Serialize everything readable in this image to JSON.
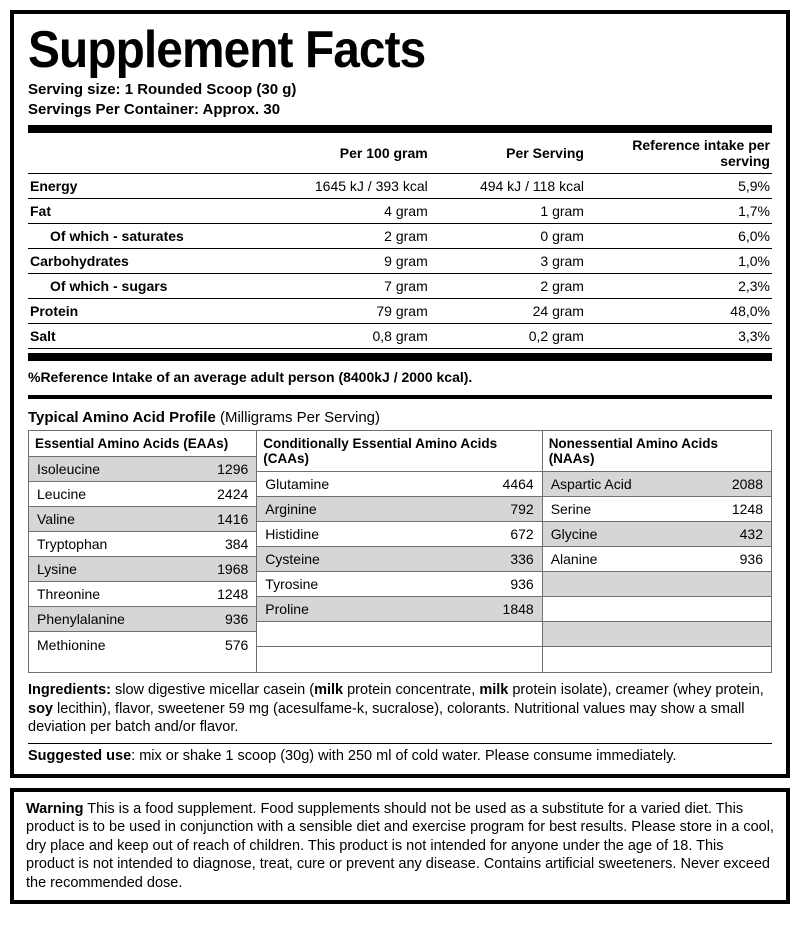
{
  "title": "Supplement Facts",
  "serving_size_label": "Serving size:",
  "serving_size_value": "1 Rounded Scoop (30 g)",
  "servings_per_container_label": "Servings Per Container:",
  "servings_per_container_value": "Approx. 30",
  "nutri": {
    "headers": [
      "",
      "Per 100 gram",
      "Per Serving",
      "Reference intake per serving"
    ],
    "rows": [
      {
        "name": "Energy",
        "sub": false,
        "per100": "1645 kJ / 393 kcal",
        "perServ": "494 kJ / 118 kcal",
        "ri": "5,9%"
      },
      {
        "name": "Fat",
        "sub": false,
        "per100": "4 gram",
        "perServ": "1 gram",
        "ri": "1,7%"
      },
      {
        "name": "Of which - saturates",
        "sub": true,
        "per100": "2 gram",
        "perServ": "0 gram",
        "ri": "6,0%"
      },
      {
        "name": "Carbohydrates",
        "sub": false,
        "per100": "9 gram",
        "perServ": "3 gram",
        "ri": "1,0%"
      },
      {
        "name": "Of which - sugars",
        "sub": true,
        "per100": "7 gram",
        "perServ": "2 gram",
        "ri": "2,3%"
      },
      {
        "name": "Protein",
        "sub": false,
        "per100": "79 gram",
        "perServ": "24 gram",
        "ri": "48,0%"
      },
      {
        "name": "Salt",
        "sub": false,
        "per100": "0,8 gram",
        "perServ": "0,2 gram",
        "ri": "3,3%"
      }
    ]
  },
  "ref_note": "%Reference Intake of an average adult person (8400kJ / 2000 kcal).",
  "amino_title_bold": "Typical Amino Acid Profile",
  "amino_title_rest": " (Milligrams Per Serving)",
  "amino": {
    "cols": [
      {
        "header": "Essential Amino Acids (EAAs)",
        "rows": [
          {
            "n": "Isoleucine",
            "v": "1296",
            "shade": true
          },
          {
            "n": "Leucine",
            "v": "2424",
            "shade": false
          },
          {
            "n": "Valine",
            "v": "1416",
            "shade": true
          },
          {
            "n": "Tryptophan",
            "v": "384",
            "shade": false
          },
          {
            "n": "Lysine",
            "v": "1968",
            "shade": true
          },
          {
            "n": "Threonine",
            "v": "1248",
            "shade": false
          },
          {
            "n": "Phenylalanine",
            "v": "936",
            "shade": true
          },
          {
            "n": "Methionine",
            "v": "576",
            "shade": false
          }
        ]
      },
      {
        "header": "Conditionally Essential Amino Acids (CAAs)",
        "rows": [
          {
            "n": "Glutamine",
            "v": "4464",
            "shade": false
          },
          {
            "n": "Arginine",
            "v": "792",
            "shade": true
          },
          {
            "n": "Histidine",
            "v": "672",
            "shade": false
          },
          {
            "n": "Cysteine",
            "v": "336",
            "shade": true
          },
          {
            "n": "Tyrosine",
            "v": "936",
            "shade": false
          },
          {
            "n": "Proline",
            "v": "1848",
            "shade": true
          },
          {
            "n": "",
            "v": "",
            "shade": false
          },
          {
            "n": "",
            "v": "",
            "shade": false
          }
        ]
      },
      {
        "header": "Nonessential Amino Acids (NAAs)",
        "rows": [
          {
            "n": "Aspartic Acid",
            "v": "2088",
            "shade": true
          },
          {
            "n": "Serine",
            "v": "1248",
            "shade": false
          },
          {
            "n": "Glycine",
            "v": "432",
            "shade": true
          },
          {
            "n": "Alanine",
            "v": "936",
            "shade": false
          },
          {
            "n": "",
            "v": "",
            "shade": true
          },
          {
            "n": "",
            "v": "",
            "shade": false
          },
          {
            "n": "",
            "v": "",
            "shade": true
          },
          {
            "n": "",
            "v": "",
            "shade": false
          }
        ]
      }
    ]
  },
  "ingredients_label": "Ingredients:",
  "ingredients_p1": " slow digestive micellar casein (",
  "ingredients_b1": "milk",
  "ingredients_p2": " protein concentrate, ",
  "ingredients_b2": "milk",
  "ingredients_p3": " protein isolate), creamer (whey protein, ",
  "ingredients_b3": "soy",
  "ingredients_p4": " lecithin), flavor, sweetener 59 mg (acesulfame-k, sucralose), colorants. Nutritional values may show a small deviation per batch and/or flavor.",
  "suggested_label": "Suggested use",
  "suggested_text": ": mix or shake 1 scoop (30g) with 250 ml of cold water. Please consume immediately.",
  "warning_label": "Warning",
  "warning_text": " This is a food supplement. Food supplements should not be used as a substitute for a varied diet. This product is to be used in conjunction with a sensible diet and exercise program for best results. Please store in a cool, dry place and keep out of reach of children. This product is not intended for anyone under the age of 18. This product is not intended to diagnose, treat, cure or prevent any disease. Contains artificial sweeteners. Never exceed the recommended dose.",
  "colors": {
    "border": "#000000",
    "shade": "#d6d6d6",
    "grid": "#707070",
    "bg": "#ffffff"
  }
}
